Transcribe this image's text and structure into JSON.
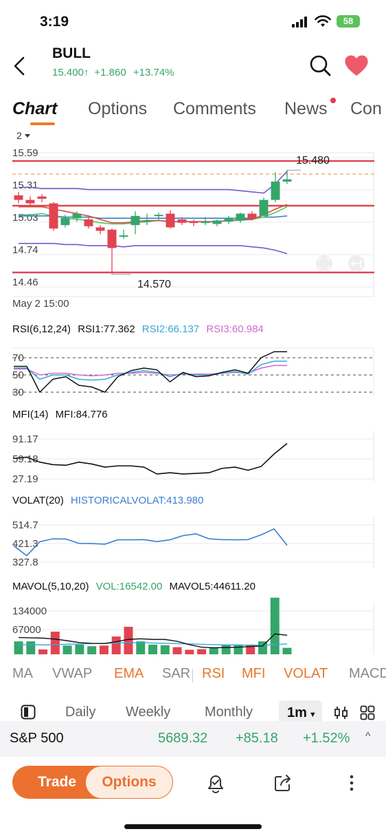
{
  "status": {
    "time": "3:19",
    "battery": "58"
  },
  "header": {
    "ticker": "BULL",
    "price": "15.400",
    "arrow": "↑",
    "change": "+1.860",
    "change_pct": "+13.74%"
  },
  "tabs": [
    "Chart",
    "Options",
    "Comments",
    "News",
    "Con"
  ],
  "main_chart": {
    "period_selector": "2",
    "y_ticks": [
      "15.59",
      "15.31",
      "15.03",
      "14.74",
      "14.46"
    ],
    "high_label": "15.480",
    "low_label": "14.570",
    "x_label": "May 2 15:00",
    "candles": [
      {
        "o": 15.26,
        "c": 15.22,
        "h": 15.29,
        "l": 15.19
      },
      {
        "o": 15.22,
        "c": 15.19,
        "h": 15.25,
        "l": 15.16
      },
      {
        "o": 15.25,
        "c": 15.23,
        "h": 15.27,
        "l": 15.2
      },
      {
        "o": 15.19,
        "c": 14.97,
        "h": 15.2,
        "l": 14.95
      },
      {
        "o": 15.0,
        "c": 15.06,
        "h": 15.09,
        "l": 14.98
      },
      {
        "o": 15.06,
        "c": 15.1,
        "h": 15.12,
        "l": 15.03
      },
      {
        "o": 15.05,
        "c": 14.99,
        "h": 15.07,
        "l": 14.97
      },
      {
        "o": 14.98,
        "c": 14.95,
        "h": 15.0,
        "l": 14.92
      },
      {
        "o": 14.96,
        "c": 14.8,
        "h": 14.97,
        "l": 14.57
      },
      {
        "o": 14.9,
        "c": 14.91,
        "h": 14.96,
        "l": 14.88
      },
      {
        "o": 15.0,
        "c": 15.08,
        "h": 15.12,
        "l": 14.92
      },
      {
        "o": 15.03,
        "c": 15.04,
        "h": 15.1,
        "l": 15.0
      },
      {
        "o": 15.08,
        "c": 15.09,
        "h": 15.11,
        "l": 15.04
      },
      {
        "o": 15.1,
        "c": 14.98,
        "h": 15.13,
        "l": 14.97
      },
      {
        "o": 15.05,
        "c": 15.02,
        "h": 15.07,
        "l": 15.0
      },
      {
        "o": 15.03,
        "c": 15.02,
        "h": 15.05,
        "l": 14.99
      },
      {
        "o": 15.02,
        "c": 15.03,
        "h": 15.07,
        "l": 15.0
      },
      {
        "o": 15.01,
        "c": 15.04,
        "h": 15.05,
        "l": 14.99
      },
      {
        "o": 15.03,
        "c": 15.06,
        "h": 15.08,
        "l": 15.01
      },
      {
        "o": 15.04,
        "c": 15.1,
        "h": 15.11,
        "l": 15.02
      },
      {
        "o": 15.1,
        "c": 15.06,
        "h": 15.12,
        "l": 15.04
      },
      {
        "o": 15.08,
        "c": 15.22,
        "h": 15.24,
        "l": 15.08
      },
      {
        "o": 15.22,
        "c": 15.38,
        "h": 15.46,
        "l": 15.2
      },
      {
        "o": 15.38,
        "c": 15.4,
        "h": 15.48,
        "l": 15.36
      }
    ],
    "upper_band": [
      15.33,
      15.33,
      15.32,
      15.32,
      15.32,
      15.32,
      15.31,
      15.31,
      15.31,
      15.31,
      15.31,
      15.31,
      15.31,
      15.31,
      15.31,
      15.31,
      15.31,
      15.31,
      15.31,
      15.3,
      15.29,
      15.28,
      15.36,
      15.47
    ],
    "lower_band": [
      14.84,
      14.84,
      14.84,
      14.84,
      14.83,
      14.83,
      14.82,
      14.82,
      14.82,
      14.81,
      14.82,
      14.82,
      14.82,
      14.82,
      14.82,
      14.82,
      14.82,
      14.82,
      14.82,
      14.82,
      14.81,
      14.8,
      14.78,
      14.75
    ],
    "ema_red": [
      15.16,
      15.16,
      15.16,
      15.14,
      15.12,
      15.1,
      15.08,
      15.05,
      15.02,
      15.02,
      15.03,
      15.04,
      15.04,
      15.03,
      15.03,
      15.03,
      15.03,
      15.03,
      15.04,
      15.05,
      15.05,
      15.09,
      15.14,
      15.18
    ],
    "ema_blue": [
      15.08,
      15.08,
      15.08,
      15.08,
      15.07,
      15.07,
      15.07,
      15.06,
      15.06,
      15.06,
      15.06,
      15.06,
      15.06,
      15.06,
      15.06,
      15.06,
      15.06,
      15.06,
      15.06,
      15.06,
      15.06,
      15.07,
      15.07,
      15.08
    ],
    "ema_green": [
      15.09,
      15.09,
      15.1,
      15.08,
      15.06,
      15.05,
      15.04,
      15.02,
      15.01,
      15.01,
      15.02,
      15.03,
      15.04,
      15.03,
      15.03,
      15.03,
      15.03,
      15.03,
      15.04,
      15.04,
      15.05,
      15.07,
      15.11,
      15.16
    ]
  },
  "rsi": {
    "title": "RSI(6,12,24)",
    "rsi1": "RSI1:77.362",
    "rsi2": "RSI2:66.137",
    "rsi3": "RSI3:60.984",
    "ticks": [
      "70",
      "50",
      "30"
    ],
    "r1": [
      60,
      60,
      30,
      45,
      48,
      38,
      36,
      30,
      48,
      55,
      58,
      56,
      42,
      53,
      48,
      49,
      53,
      56,
      52,
      70,
      77,
      77
    ],
    "r2": [
      58,
      58,
      45,
      50,
      50,
      45,
      44,
      45,
      50,
      53,
      55,
      53,
      48,
      52,
      50,
      50,
      52,
      54,
      51,
      62,
      66,
      66
    ],
    "r3": [
      57,
      57,
      50,
      52,
      52,
      50,
      49,
      50,
      52,
      52,
      53,
      52,
      50,
      51,
      51,
      51,
      52,
      53,
      52,
      58,
      61,
      61
    ]
  },
  "mfi": {
    "title": "MFI(14)",
    "value": "MFI:84.776",
    "ticks": [
      "91.17",
      "59.18",
      "27.19"
    ],
    "values": [
      60,
      62,
      54,
      50,
      49,
      54,
      51,
      46,
      48,
      48,
      46,
      35,
      37,
      35,
      36,
      37,
      44,
      46,
      41,
      47,
      67,
      84
    ]
  },
  "volat": {
    "title": "VOLAT(20)",
    "value": "HISTORICALVOLAT:413.980",
    "ticks": [
      "514.7",
      "421.3",
      "327.8"
    ],
    "values": [
      410,
      360,
      430,
      445,
      444,
      422,
      421,
      418,
      440,
      440,
      441,
      431,
      440,
      461,
      470,
      445,
      441,
      440,
      441,
      465,
      495,
      412
    ]
  },
  "mavol": {
    "title": "MAVOL(5,10,20)",
    "vol": "VOL:16542.00",
    "mavol5": "MAVOL5:44611.20",
    "ticks": [
      "134000",
      "67000"
    ],
    "volumes": [
      40000,
      40000,
      15000,
      70000,
      27000,
      30000,
      25000,
      27000,
      55000,
      85000,
      40000,
      30000,
      28000,
      22000,
      14000,
      16000,
      22000,
      28000,
      28000,
      30000,
      40000,
      175000,
      20000
    ],
    "up": [
      1,
      1,
      0,
      0,
      1,
      1,
      1,
      0,
      0,
      0,
      1,
      1,
      1,
      0,
      0,
      0,
      1,
      1,
      1,
      0,
      1,
      1,
      1
    ],
    "ma5": [
      52000,
      51000,
      50000,
      47000,
      42000,
      36000,
      34000,
      33000,
      39000,
      46000,
      48000,
      46000,
      46000,
      40000,
      30000,
      22000,
      20000,
      21000,
      22000,
      24000,
      26000,
      63000,
      59000
    ],
    "ma10": [
      30000,
      30000,
      29000,
      30000,
      31000,
      32000,
      33000,
      34000,
      35000,
      36000,
      36000,
      35000,
      34000,
      33000,
      32000,
      31000,
      30000,
      29000,
      29000,
      28000,
      28000,
      30000,
      32000
    ]
  },
  "indicators": [
    {
      "label": "MA",
      "on": false
    },
    {
      "label": "VWAP",
      "on": false
    },
    {
      "label": "EMA",
      "on": true
    },
    {
      "label": "SAR",
      "on": false
    },
    {
      "label": "RSI",
      "on": true
    },
    {
      "label": "MFI",
      "on": true
    },
    {
      "label": "VOLAT",
      "on": true
    },
    {
      "label": "MACD",
      "on": false
    }
  ],
  "periods": {
    "daily": "Daily",
    "weekly": "Weekly",
    "monthly": "Monthly",
    "active": "1m"
  },
  "index": {
    "name": "S&P 500",
    "value": "5689.32",
    "change": "+85.18",
    "pct": "+1.52%"
  },
  "bottom": {
    "trade": "Trade",
    "options": "Options"
  },
  "colors": {
    "up": "#35a66a",
    "down": "#e14451",
    "accent": "#ec7130",
    "rsi2": "#39a8d8",
    "rsi3": "#d06ad0",
    "band": "#7a55d0"
  }
}
